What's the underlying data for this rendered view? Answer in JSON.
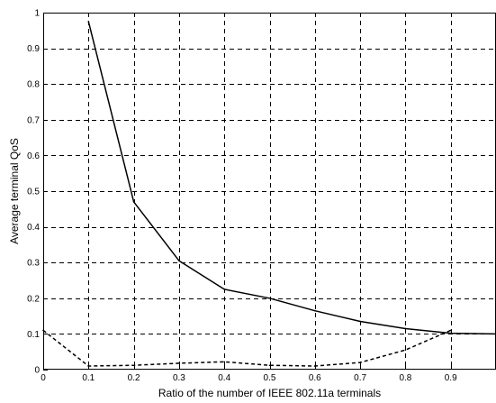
{
  "chart_data": {
    "type": "line",
    "title": "",
    "xlabel": "Ratio of the number of IEEE 802.11a terminals",
    "ylabel": "Average terminal QoS",
    "xlim": [
      0,
      1
    ],
    "ylim": [
      0,
      1
    ],
    "grid": true,
    "x_ticks": [
      0,
      0.1,
      0.2,
      0.3,
      0.4,
      0.5,
      0.6,
      0.7,
      0.8,
      0.9
    ],
    "x_tick_labels": [
      "0",
      "0.1",
      "0.2",
      "0.3",
      "0.4",
      "0.5",
      "0.6",
      "0.7",
      "0.8",
      "0.9"
    ],
    "y_ticks": [
      0,
      0.1,
      0.2,
      0.3,
      0.4,
      0.5,
      0.6,
      0.7,
      0.8,
      0.9,
      1
    ],
    "y_tick_labels": [
      "0",
      "0.1",
      "0.2",
      "0.3",
      "0.4",
      "0.5",
      "0.6",
      "0.7",
      "0.8",
      "0.9",
      "1"
    ],
    "series": [
      {
        "style": "solid",
        "color": "#000000",
        "x": [
          0.1,
          0.2,
          0.3,
          0.4,
          0.5,
          0.6,
          0.7,
          0.8,
          0.9,
          1.0
        ],
        "values": [
          0.975,
          0.47,
          0.305,
          0.225,
          0.2,
          0.165,
          0.135,
          0.115,
          0.102,
          0.1
        ]
      },
      {
        "style": "dashed",
        "color": "#000000",
        "x": [
          0.0,
          0.1,
          0.2,
          0.3,
          0.4,
          0.5,
          0.6,
          0.7,
          0.8,
          0.9
        ],
        "values": [
          0.11,
          0.01,
          0.012,
          0.018,
          0.022,
          0.012,
          0.01,
          0.02,
          0.055,
          0.11
        ]
      }
    ]
  }
}
